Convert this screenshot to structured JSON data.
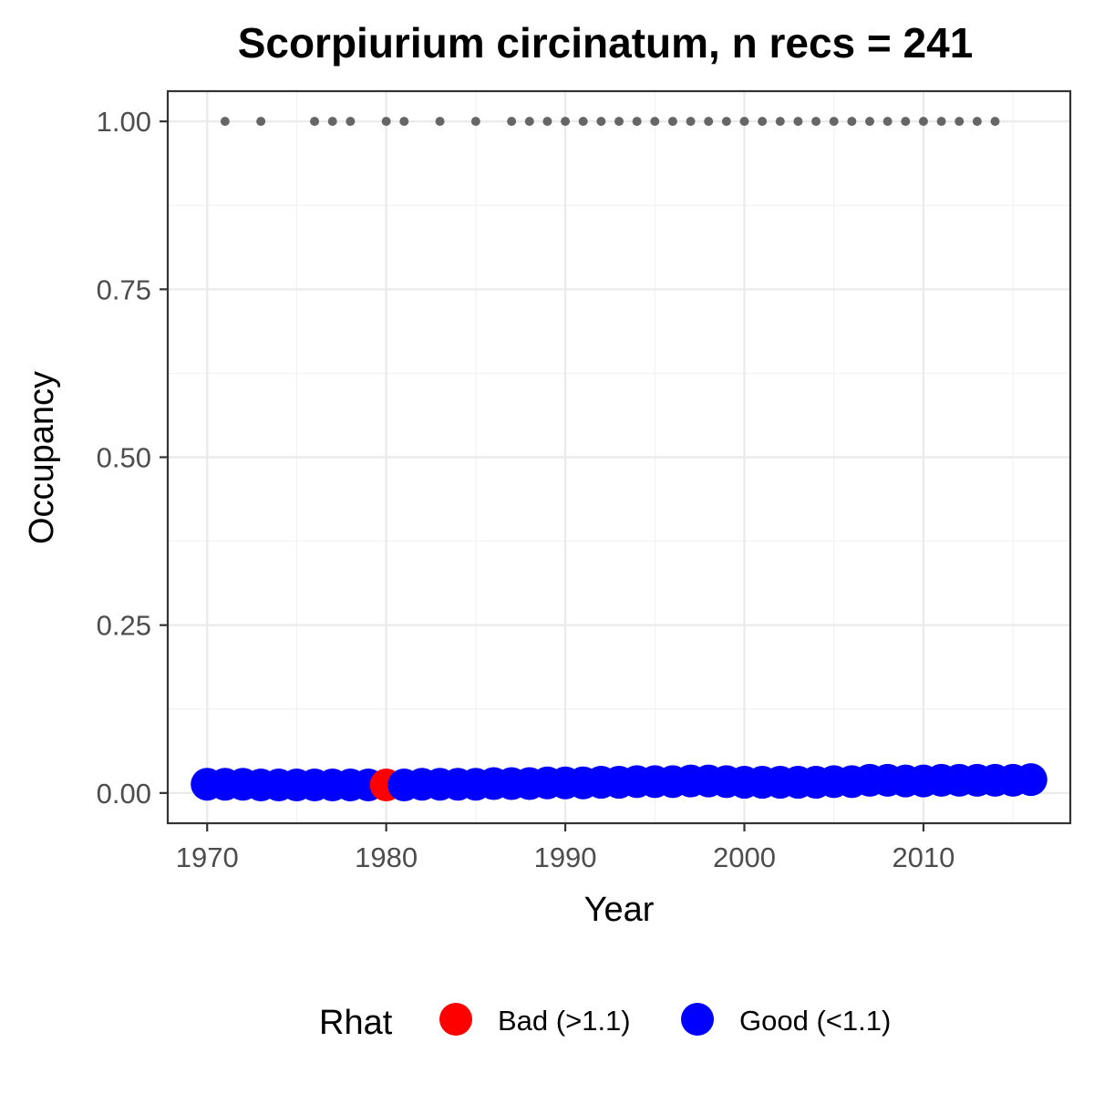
{
  "chart_data": {
    "type": "scatter",
    "title": "Scorpiurium circinatum, n recs = 241",
    "xlabel": "Year",
    "ylabel": "Occupancy",
    "xlim": [
      1967.8,
      2018.2
    ],
    "ylim": [
      -0.045,
      1.045
    ],
    "x_ticks": [
      1970,
      1980,
      1990,
      2000,
      2010
    ],
    "y_ticks": [
      0.0,
      0.25,
      0.5,
      0.75,
      1.0
    ],
    "x_tick_labels": [
      "1970",
      "1980",
      "1990",
      "2000",
      "2010"
    ],
    "y_tick_labels": [
      "0.00",
      "0.25",
      "0.50",
      "0.75",
      "1.00"
    ],
    "grid": true,
    "legend": {
      "title": "Rhat",
      "position": "bottom",
      "entries": [
        {
          "label": "Bad (>1.1)",
          "color": "#ff0000"
        },
        {
          "label": "Good (<1.1)",
          "color": "#0000ff"
        }
      ]
    },
    "colors": {
      "Bad (>1.1)": "#ff0000",
      "Good (<1.1)": "#0000ff",
      "records": "#666666"
    },
    "series": [
      {
        "name": "Good (<1.1)",
        "color": "#0000ff",
        "x": [
          1970,
          1971,
          1972,
          1973,
          1974,
          1975,
          1976,
          1977,
          1978,
          1979,
          1981,
          1982,
          1983,
          1984,
          1985,
          1986,
          1987,
          1988,
          1989,
          1990,
          1991,
          1992,
          1993,
          1994,
          1995,
          1996,
          1997,
          1998,
          1999,
          2000,
          2001,
          2002,
          2003,
          2004,
          2005,
          2006,
          2007,
          2008,
          2009,
          2010,
          2011,
          2012,
          2013,
          2014,
          2015,
          2016
        ],
        "y": [
          0.013,
          0.013,
          0.013,
          0.012,
          0.012,
          0.012,
          0.012,
          0.012,
          0.012,
          0.012,
          0.012,
          0.013,
          0.013,
          0.013,
          0.013,
          0.014,
          0.014,
          0.014,
          0.015,
          0.015,
          0.015,
          0.016,
          0.016,
          0.017,
          0.017,
          0.017,
          0.018,
          0.018,
          0.017,
          0.016,
          0.016,
          0.016,
          0.016,
          0.016,
          0.017,
          0.017,
          0.019,
          0.019,
          0.018,
          0.018,
          0.019,
          0.019,
          0.019,
          0.019,
          0.019,
          0.02
        ]
      },
      {
        "name": "Bad (>1.1)",
        "color": "#ff0000",
        "x": [
          1980
        ],
        "y": [
          0.012
        ]
      }
    ],
    "records": {
      "color": "#666666",
      "x": [
        1971,
        1973,
        1976,
        1977,
        1978,
        1980,
        1981,
        1983,
        1985,
        1987,
        1988,
        1989,
        1990,
        1991,
        1992,
        1993,
        1994,
        1995,
        1996,
        1997,
        1998,
        1999,
        2000,
        2001,
        2002,
        2003,
        2004,
        2005,
        2006,
        2007,
        2008,
        2009,
        2010,
        2011,
        2012,
        2013,
        2014
      ],
      "y": 1.0
    }
  }
}
